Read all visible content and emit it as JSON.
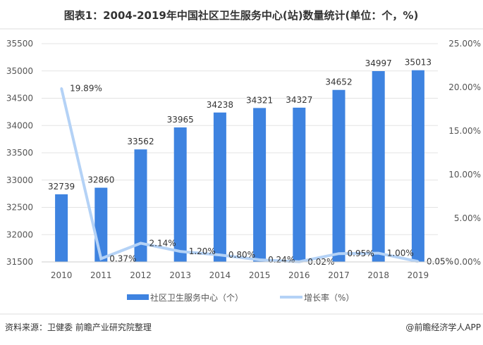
{
  "chart_data": {
    "type": "bar",
    "title": "图表1：2004-2019年中国社区卫生服务中心(站)数量统计(单位：个，%)",
    "categories": [
      "2010",
      "2011",
      "2012",
      "2013",
      "2014",
      "2015",
      "2016",
      "2017",
      "2018",
      "2019"
    ],
    "series": [
      {
        "name": "社区卫生服务中心（个）",
        "type": "bar",
        "axis": "left",
        "color": "#3e83e0",
        "values": [
          32739,
          32860,
          33562,
          33965,
          34238,
          34321,
          34327,
          34652,
          34997,
          35013
        ]
      },
      {
        "name": "增长率（%）",
        "type": "line",
        "axis": "right",
        "color": "#b4d2f6",
        "values": [
          19.89,
          0.37,
          2.14,
          1.2,
          0.8,
          0.24,
          0.02,
          0.95,
          1.0,
          0.05
        ],
        "labels": [
          "19.89%",
          "0.37%",
          "2.14%",
          "1.20%",
          "0.80%",
          "0.24%",
          "0.02%",
          "0.95%",
          "1.00%",
          "0.05%"
        ]
      }
    ],
    "ylim_left": [
      31500,
      35500
    ],
    "yticks_left": [
      "31500",
      "32000",
      "32500",
      "33000",
      "33500",
      "34000",
      "34500",
      "35000",
      "35500"
    ],
    "ylim_right": [
      0,
      25
    ],
    "yticks_right": [
      "0.00%",
      "5.00%",
      "10.00%",
      "15.00%",
      "20.00%",
      "25.00%"
    ],
    "grid": true,
    "legend": "bottom"
  },
  "footer": {
    "source": "资料来源：卫健委   前瞻产业研究院整理",
    "brand": "@前瞻经济学人APP"
  }
}
